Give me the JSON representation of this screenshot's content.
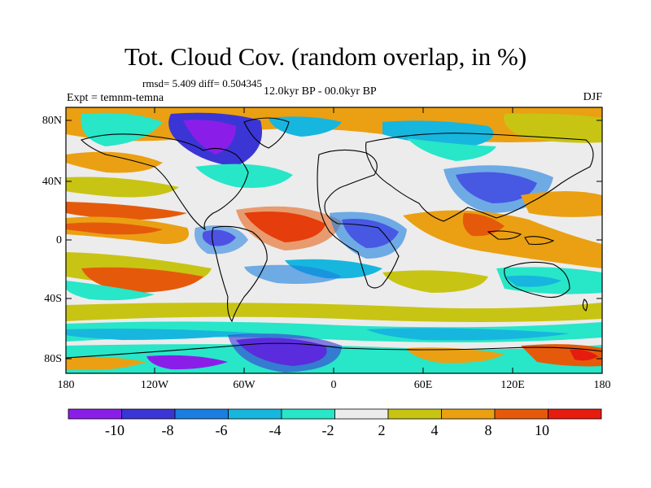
{
  "title": "Tot. Cloud Cov. (random overlap, in %)",
  "stats": "rmsd= 5.409 diff= 0.504345",
  "experiment": "Expt = temnm-temna",
  "period": "12.0kyr BP - 00.0kyr BP",
  "season": "DJF",
  "lat_labels": [
    "80N",
    "40N",
    "0",
    "40S",
    "80S"
  ],
  "lon_labels": [
    "180",
    "120W",
    "60W",
    "0",
    "60E",
    "120E",
    "180"
  ],
  "colorbar": {
    "labels": [
      "-10",
      "-8",
      "-6",
      "-4",
      "-2",
      "2",
      "4",
      "8",
      "10"
    ],
    "colors": [
      "#8a1ee8",
      "#3b35d6",
      "#1b7ee0",
      "#17b6de",
      "#28e6c8",
      "#ececec",
      "#c8c414",
      "#eaa012",
      "#e55a0a",
      "#e51c0e"
    ]
  },
  "colors": {
    "land_outline": "#000000",
    "neutral": "#ececec"
  }
}
